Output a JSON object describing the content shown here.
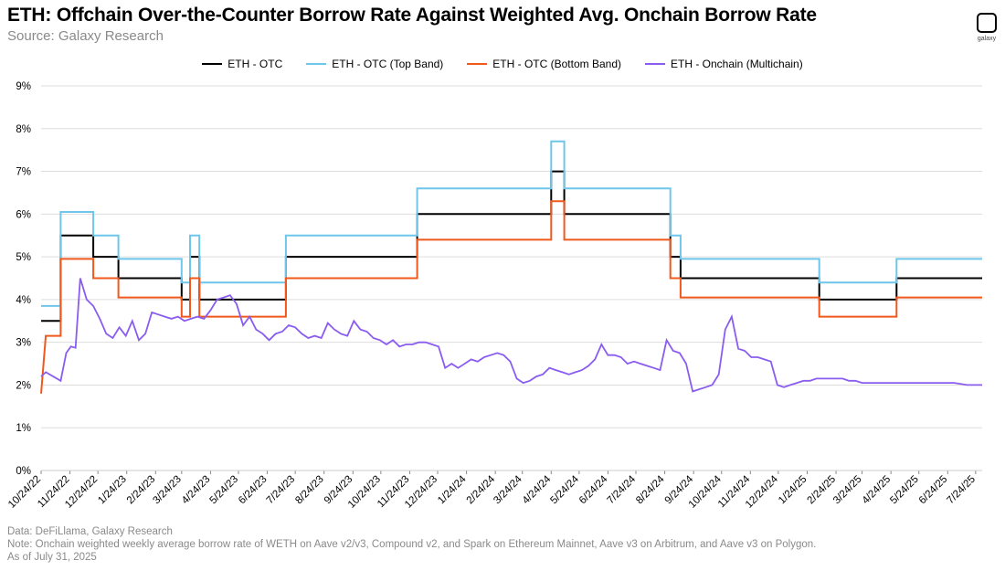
{
  "header": {
    "title": "ETH: Offchain Over-the-Counter Borrow Rate Against Weighted Avg. Onchain Borrow Rate",
    "subtitle": "Source: Galaxy Research",
    "logo_text": "galaxy"
  },
  "footnotes": {
    "data_source": "Data: DeFiLlama, Galaxy Research",
    "note": "Note: Onchain weighted weekly average borrow rate of WETH on Aave v2/v3, Compound v2, and Spark on Ethereum Mainnet, Aave v3 on Arbitrum, and Aave v3 on Polygon.",
    "as_of": "As of July 31, 2025"
  },
  "colors": {
    "otc": "#000000",
    "top_band": "#6ec6ea",
    "bottom_band": "#f0581c",
    "onchain": "#8a5cf0",
    "grid": "#dddddd"
  },
  "chart_data": {
    "type": "line",
    "title": "ETH: Offchain Over-the-Counter Borrow Rate Against Weighted Avg. Onchain Borrow Rate",
    "xlabel": "",
    "ylabel": "",
    "ylim": [
      0,
      9
    ],
    "yticks": [
      "0%",
      "1%",
      "2%",
      "3%",
      "4%",
      "5%",
      "6%",
      "7%",
      "8%",
      "9%"
    ],
    "x_range": [
      "2022-10-24",
      "2025-07-31"
    ],
    "xticks": [
      "10/24/22",
      "11/24/22",
      "12/24/22",
      "1/24/23",
      "2/24/23",
      "3/24/23",
      "4/24/23",
      "5/24/23",
      "6/24/23",
      "7/24/23",
      "8/24/23",
      "9/24/23",
      "10/24/23",
      "11/24/23",
      "12/24/23",
      "1/24/24",
      "2/24/24",
      "3/24/24",
      "4/24/24",
      "5/24/24",
      "6/24/24",
      "7/24/24",
      "8/24/24",
      "9/24/24",
      "10/24/24",
      "11/24/24",
      "12/24/24",
      "1/24/25",
      "2/24/25",
      "3/24/25",
      "4/24/25",
      "5/24/25",
      "6/24/25",
      "7/24/25"
    ],
    "grid": true,
    "legend_position": "top-center",
    "series": [
      {
        "name": "ETH - OTC",
        "color": "#000000",
        "step": true,
        "points": [
          [
            "2022-10-24",
            3.5
          ],
          [
            "2022-11-14",
            3.5
          ],
          [
            "2022-11-14",
            5.5
          ],
          [
            "2022-12-19",
            5.5
          ],
          [
            "2022-12-19",
            5.0
          ],
          [
            "2023-01-15",
            5.0
          ],
          [
            "2023-01-15",
            4.5
          ],
          [
            "2023-03-24",
            4.5
          ],
          [
            "2023-03-24",
            4.0
          ],
          [
            "2023-04-02",
            4.0
          ],
          [
            "2023-04-02",
            5.0
          ],
          [
            "2023-04-12",
            5.0
          ],
          [
            "2023-04-12",
            4.0
          ],
          [
            "2023-07-14",
            4.0
          ],
          [
            "2023-07-14",
            5.0
          ],
          [
            "2023-12-02",
            5.0
          ],
          [
            "2023-12-02",
            6.0
          ],
          [
            "2024-04-24",
            6.0
          ],
          [
            "2024-04-24",
            7.0
          ],
          [
            "2024-05-08",
            7.0
          ],
          [
            "2024-05-08",
            6.0
          ],
          [
            "2024-08-30",
            6.0
          ],
          [
            "2024-08-30",
            5.0
          ],
          [
            "2024-09-10",
            5.0
          ],
          [
            "2024-09-10",
            4.5
          ],
          [
            "2025-02-06",
            4.5
          ],
          [
            "2025-02-06",
            4.0
          ],
          [
            "2025-04-30",
            4.0
          ],
          [
            "2025-04-30",
            4.5
          ],
          [
            "2025-07-31",
            4.5
          ]
        ]
      },
      {
        "name": "ETH - OTC (Top Band)",
        "color": "#6ec6ea",
        "step": true,
        "points": [
          [
            "2022-10-24",
            3.85
          ],
          [
            "2022-11-14",
            3.85
          ],
          [
            "2022-11-14",
            6.05
          ],
          [
            "2022-12-19",
            6.05
          ],
          [
            "2022-12-19",
            5.5
          ],
          [
            "2023-01-15",
            5.5
          ],
          [
            "2023-01-15",
            4.95
          ],
          [
            "2023-03-24",
            4.95
          ],
          [
            "2023-03-24",
            4.4
          ],
          [
            "2023-04-02",
            4.4
          ],
          [
            "2023-04-02",
            5.5
          ],
          [
            "2023-04-12",
            5.5
          ],
          [
            "2023-04-12",
            4.4
          ],
          [
            "2023-07-14",
            4.4
          ],
          [
            "2023-07-14",
            5.5
          ],
          [
            "2023-12-02",
            5.5
          ],
          [
            "2023-12-02",
            6.6
          ],
          [
            "2024-04-24",
            6.6
          ],
          [
            "2024-04-24",
            7.7
          ],
          [
            "2024-05-08",
            7.7
          ],
          [
            "2024-05-08",
            6.6
          ],
          [
            "2024-08-30",
            6.6
          ],
          [
            "2024-08-30",
            5.5
          ],
          [
            "2024-09-10",
            5.5
          ],
          [
            "2024-09-10",
            4.95
          ],
          [
            "2025-02-06",
            4.95
          ],
          [
            "2025-02-06",
            4.4
          ],
          [
            "2025-04-30",
            4.4
          ],
          [
            "2025-04-30",
            4.95
          ],
          [
            "2025-07-31",
            4.95
          ]
        ]
      },
      {
        "name": "ETH - OTC (Bottom Band)",
        "color": "#f0581c",
        "step": true,
        "points": [
          [
            "2022-10-24",
            1.8
          ],
          [
            "2022-10-29",
            3.15
          ],
          [
            "2022-11-14",
            3.15
          ],
          [
            "2022-11-14",
            4.95
          ],
          [
            "2022-12-19",
            4.95
          ],
          [
            "2022-12-19",
            4.5
          ],
          [
            "2023-01-15",
            4.5
          ],
          [
            "2023-01-15",
            4.05
          ],
          [
            "2023-03-24",
            4.05
          ],
          [
            "2023-03-24",
            3.6
          ],
          [
            "2023-04-02",
            3.6
          ],
          [
            "2023-04-02",
            4.5
          ],
          [
            "2023-04-12",
            4.5
          ],
          [
            "2023-04-12",
            3.6
          ],
          [
            "2023-07-14",
            3.6
          ],
          [
            "2023-07-14",
            4.5
          ],
          [
            "2023-12-02",
            4.5
          ],
          [
            "2023-12-02",
            5.4
          ],
          [
            "2024-04-24",
            5.4
          ],
          [
            "2024-04-24",
            6.3
          ],
          [
            "2024-05-08",
            6.3
          ],
          [
            "2024-05-08",
            5.4
          ],
          [
            "2024-08-30",
            5.4
          ],
          [
            "2024-08-30",
            4.5
          ],
          [
            "2024-09-10",
            4.5
          ],
          [
            "2024-09-10",
            4.05
          ],
          [
            "2025-02-06",
            4.05
          ],
          [
            "2025-02-06",
            3.6
          ],
          [
            "2025-04-30",
            3.6
          ],
          [
            "2025-04-30",
            4.05
          ],
          [
            "2025-07-31",
            4.05
          ]
        ]
      },
      {
        "name": "ETH - Onchain (Multichain)",
        "color": "#8a5cf0",
        "step": false,
        "points": [
          [
            "2022-10-24",
            2.2
          ],
          [
            "2022-10-29",
            2.3
          ],
          [
            "2022-11-14",
            2.1
          ],
          [
            "2022-11-20",
            2.75
          ],
          [
            "2022-11-25",
            2.9
          ],
          [
            "2022-11-30",
            2.87
          ],
          [
            "2022-12-05",
            4.5
          ],
          [
            "2022-12-12",
            4.0
          ],
          [
            "2022-12-19",
            3.85
          ],
          [
            "2022-12-26",
            3.55
          ],
          [
            "2023-01-02",
            3.2
          ],
          [
            "2023-01-09",
            3.1
          ],
          [
            "2023-01-16",
            3.35
          ],
          [
            "2023-01-23",
            3.15
          ],
          [
            "2023-01-30",
            3.5
          ],
          [
            "2023-02-06",
            3.05
          ],
          [
            "2023-02-13",
            3.2
          ],
          [
            "2023-02-20",
            3.7
          ],
          [
            "2023-02-27",
            3.65
          ],
          [
            "2023-03-06",
            3.6
          ],
          [
            "2023-03-13",
            3.55
          ],
          [
            "2023-03-20",
            3.6
          ],
          [
            "2023-03-27",
            3.5
          ],
          [
            "2023-04-03",
            3.55
          ],
          [
            "2023-04-10",
            3.6
          ],
          [
            "2023-04-17",
            3.55
          ],
          [
            "2023-04-24",
            3.75
          ],
          [
            "2023-05-01",
            4.0
          ],
          [
            "2023-05-08",
            4.05
          ],
          [
            "2023-05-15",
            4.1
          ],
          [
            "2023-05-22",
            3.9
          ],
          [
            "2023-05-29",
            3.4
          ],
          [
            "2023-06-05",
            3.6
          ],
          [
            "2023-06-12",
            3.3
          ],
          [
            "2023-06-19",
            3.2
          ],
          [
            "2023-06-26",
            3.05
          ],
          [
            "2023-07-03",
            3.2
          ],
          [
            "2023-07-10",
            3.25
          ],
          [
            "2023-07-17",
            3.4
          ],
          [
            "2023-07-24",
            3.35
          ],
          [
            "2023-07-31",
            3.2
          ],
          [
            "2023-08-07",
            3.1
          ],
          [
            "2023-08-14",
            3.15
          ],
          [
            "2023-08-21",
            3.1
          ],
          [
            "2023-08-28",
            3.45
          ],
          [
            "2023-09-04",
            3.3
          ],
          [
            "2023-09-11",
            3.2
          ],
          [
            "2023-09-18",
            3.15
          ],
          [
            "2023-09-25",
            3.5
          ],
          [
            "2023-10-02",
            3.3
          ],
          [
            "2023-10-09",
            3.25
          ],
          [
            "2023-10-16",
            3.1
          ],
          [
            "2023-10-23",
            3.05
          ],
          [
            "2023-10-30",
            2.95
          ],
          [
            "2023-11-06",
            3.05
          ],
          [
            "2023-11-13",
            2.9
          ],
          [
            "2023-11-20",
            2.95
          ],
          [
            "2023-11-27",
            2.95
          ],
          [
            "2023-12-04",
            3.0
          ],
          [
            "2023-12-11",
            3.0
          ],
          [
            "2023-12-18",
            2.95
          ],
          [
            "2023-12-25",
            2.9
          ],
          [
            "2024-01-01",
            2.4
          ],
          [
            "2024-01-08",
            2.5
          ],
          [
            "2024-01-15",
            2.4
          ],
          [
            "2024-01-22",
            2.5
          ],
          [
            "2024-01-29",
            2.6
          ],
          [
            "2024-02-05",
            2.55
          ],
          [
            "2024-02-12",
            2.65
          ],
          [
            "2024-02-19",
            2.7
          ],
          [
            "2024-02-26",
            2.75
          ],
          [
            "2024-03-04",
            2.7
          ],
          [
            "2024-03-11",
            2.55
          ],
          [
            "2024-03-18",
            2.15
          ],
          [
            "2024-03-25",
            2.05
          ],
          [
            "2024-04-01",
            2.1
          ],
          [
            "2024-04-08",
            2.2
          ],
          [
            "2024-04-15",
            2.25
          ],
          [
            "2024-04-22",
            2.4
          ],
          [
            "2024-04-29",
            2.35
          ],
          [
            "2024-05-06",
            2.3
          ],
          [
            "2024-05-13",
            2.25
          ],
          [
            "2024-05-20",
            2.3
          ],
          [
            "2024-05-27",
            2.35
          ],
          [
            "2024-06-03",
            2.45
          ],
          [
            "2024-06-10",
            2.6
          ],
          [
            "2024-06-17",
            2.95
          ],
          [
            "2024-06-24",
            2.7
          ],
          [
            "2024-07-01",
            2.7
          ],
          [
            "2024-07-08",
            2.65
          ],
          [
            "2024-07-15",
            2.5
          ],
          [
            "2024-07-22",
            2.55
          ],
          [
            "2024-07-29",
            2.5
          ],
          [
            "2024-08-05",
            2.45
          ],
          [
            "2024-08-12",
            2.4
          ],
          [
            "2024-08-19",
            2.35
          ],
          [
            "2024-08-26",
            3.05
          ],
          [
            "2024-09-02",
            2.8
          ],
          [
            "2024-09-09",
            2.75
          ],
          [
            "2024-09-16",
            2.5
          ],
          [
            "2024-09-23",
            1.85
          ],
          [
            "2024-09-30",
            1.9
          ],
          [
            "2024-10-07",
            1.95
          ],
          [
            "2024-10-14",
            2.0
          ],
          [
            "2024-10-21",
            2.25
          ],
          [
            "2024-10-28",
            3.3
          ],
          [
            "2024-11-04",
            3.6
          ],
          [
            "2024-11-11",
            2.85
          ],
          [
            "2024-11-18",
            2.8
          ],
          [
            "2024-11-25",
            2.65
          ],
          [
            "2024-12-02",
            2.65
          ],
          [
            "2024-12-09",
            2.6
          ],
          [
            "2024-12-16",
            2.55
          ],
          [
            "2024-12-23",
            2.0
          ],
          [
            "2024-12-30",
            1.95
          ],
          [
            "2025-01-06",
            2.0
          ],
          [
            "2025-01-13",
            2.05
          ],
          [
            "2025-01-20",
            2.1
          ],
          [
            "2025-01-27",
            2.1
          ],
          [
            "2025-02-03",
            2.15
          ],
          [
            "2025-02-10",
            2.15
          ],
          [
            "2025-02-17",
            2.15
          ],
          [
            "2025-02-24",
            2.15
          ],
          [
            "2025-03-03",
            2.15
          ],
          [
            "2025-03-10",
            2.1
          ],
          [
            "2025-03-17",
            2.1
          ],
          [
            "2025-03-24",
            2.05
          ],
          [
            "2025-04-01",
            2.05
          ],
          [
            "2025-04-15",
            2.05
          ],
          [
            "2025-05-01",
            2.05
          ],
          [
            "2025-05-15",
            2.05
          ],
          [
            "2025-06-01",
            2.05
          ],
          [
            "2025-06-15",
            2.05
          ],
          [
            "2025-07-01",
            2.05
          ],
          [
            "2025-07-15",
            2.0
          ],
          [
            "2025-07-31",
            2.0
          ]
        ]
      }
    ]
  }
}
